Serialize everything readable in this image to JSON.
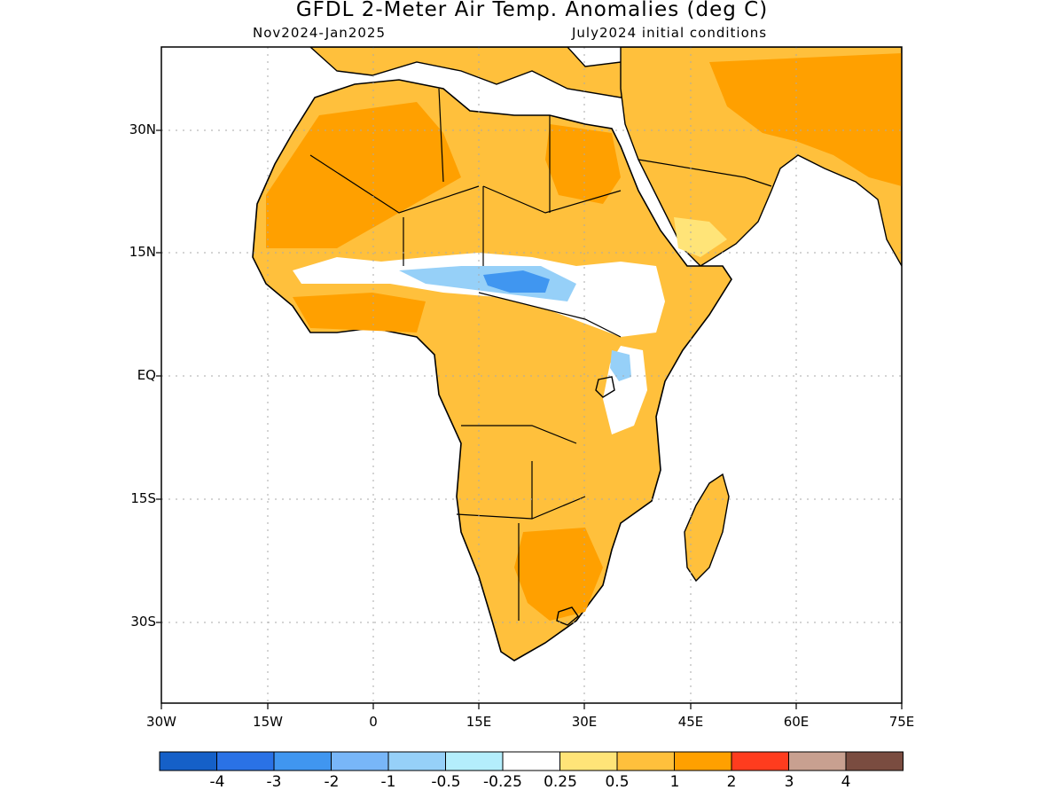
{
  "header": {
    "title": "GFDL 2-Meter Air Temp. Anomalies (deg C)",
    "period": "Nov2024-Jan2025",
    "init": "July2024 initial conditions"
  },
  "axes": {
    "lon_ticks": [
      "30W",
      "15W",
      "0",
      "15E",
      "30E",
      "45E",
      "60E",
      "75E"
    ],
    "lat_ticks": [
      "30N",
      "15N",
      "EQ",
      "15S",
      "30S"
    ]
  },
  "colorbar": {
    "colors": [
      "#1560c8",
      "#2a72e6",
      "#4096f0",
      "#78b6f8",
      "#96d0f8",
      "#b4eefc",
      "#ffffff",
      "#ffe478",
      "#ffc03c",
      "#ffa000",
      "#ff3c1e",
      "#c8a090",
      "#7a4c40"
    ],
    "labels": [
      "-4",
      "-3",
      "-2",
      "-1",
      "-0.5",
      "-0.25",
      "0.25",
      "0.5",
      "1",
      "2",
      "3",
      "4"
    ]
  },
  "map": {
    "frame_color": "#000000",
    "gridline_color": "#aaaaaa",
    "land_anomaly_color": "#ffc03c",
    "warm_anomaly_color": "#ffa000",
    "neutral_color": "#ffffff",
    "cool_color": "#96d0f8",
    "cooler_color": "#4096f0"
  }
}
